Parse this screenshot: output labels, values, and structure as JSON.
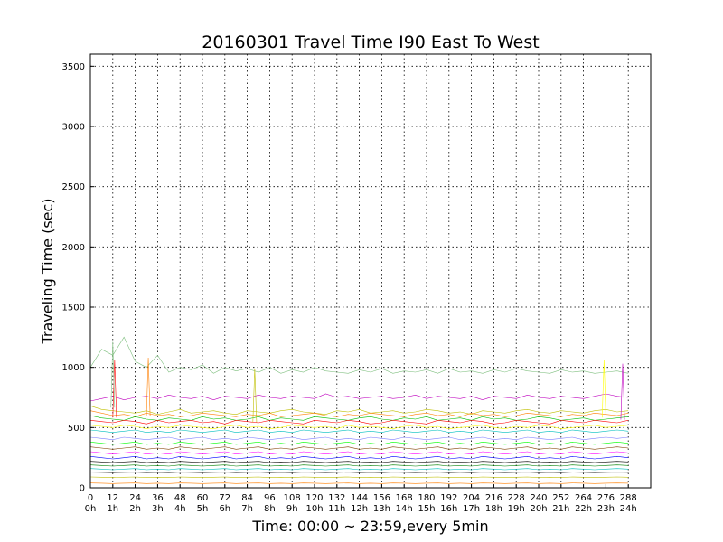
{
  "chart_data": {
    "type": "line",
    "title": "20160301 Travel Time I90 East To West",
    "xlabel": "Time: 00:00 ~ 23:59,every 5min",
    "ylabel": "Traveling Time (sec)",
    "xlim": [
      0,
      300
    ],
    "ylim": [
      0,
      3600
    ],
    "grid": true,
    "x_ticks": [
      {
        "value": 0,
        "label": "0",
        "sublabel": "0h"
      },
      {
        "value": 12,
        "label": "12",
        "sublabel": "1h"
      },
      {
        "value": 24,
        "label": "24",
        "sublabel": "2h"
      },
      {
        "value": 36,
        "label": "36",
        "sublabel": "3h"
      },
      {
        "value": 48,
        "label": "48",
        "sublabel": "4h"
      },
      {
        "value": 60,
        "label": "60",
        "sublabel": "5h"
      },
      {
        "value": 72,
        "label": "72",
        "sublabel": "6h"
      },
      {
        "value": 84,
        "label": "84",
        "sublabel": "7h"
      },
      {
        "value": 96,
        "label": "96",
        "sublabel": "8h"
      },
      {
        "value": 108,
        "label": "108",
        "sublabel": "9h"
      },
      {
        "value": 120,
        "label": "120",
        "sublabel": "10h"
      },
      {
        "value": 132,
        "label": "132",
        "sublabel": "11h"
      },
      {
        "value": 144,
        "label": "144",
        "sublabel": "12h"
      },
      {
        "value": 156,
        "label": "156",
        "sublabel": "13h"
      },
      {
        "value": 168,
        "label": "168",
        "sublabel": "14h"
      },
      {
        "value": 180,
        "label": "180",
        "sublabel": "15h"
      },
      {
        "value": 192,
        "label": "192",
        "sublabel": "16h"
      },
      {
        "value": 204,
        "label": "204",
        "sublabel": "17h"
      },
      {
        "value": 216,
        "label": "216",
        "sublabel": "18h"
      },
      {
        "value": 228,
        "label": "228",
        "sublabel": "19h"
      },
      {
        "value": 240,
        "label": "240",
        "sublabel": "20h"
      },
      {
        "value": 252,
        "label": "252",
        "sublabel": "21h"
      },
      {
        "value": 264,
        "label": "264",
        "sublabel": "22h"
      },
      {
        "value": 276,
        "label": "276",
        "sublabel": "23h"
      },
      {
        "value": 288,
        "label": "288",
        "sublabel": "24h"
      }
    ],
    "y_ticks": [
      0,
      500,
      1000,
      1500,
      2000,
      2500,
      3000,
      3500
    ],
    "series": [
      {
        "color": "#7fbf7f",
        "values": [
          1000,
          1150,
          1100,
          1250,
          1050,
          1000,
          1100,
          960,
          1000,
          980,
          1020,
          950,
          1000,
          970,
          990,
          960,
          1000,
          950,
          980,
          960,
          1000,
          970,
          960,
          950,
          980,
          960,
          990,
          950,
          970,
          960,
          980,
          950,
          990,
          960,
          970,
          950,
          980,
          960,
          990,
          970,
          960,
          950,
          980,
          960,
          970,
          950,
          960,
          970,
          950
        ]
      },
      {
        "color": "#bf00bf",
        "values": [
          720,
          740,
          760,
          730,
          750,
          760,
          740,
          770,
          750,
          740,
          760,
          730,
          760,
          750,
          740,
          770,
          750,
          740,
          760,
          750,
          740,
          780,
          750,
          760,
          740,
          750,
          760,
          740,
          750,
          770,
          740,
          760,
          750,
          740,
          760,
          730,
          760,
          750,
          740,
          770,
          750,
          740,
          760,
          750,
          740,
          760,
          780,
          760,
          750
        ]
      },
      {
        "color": "#bfbf00",
        "values": [
          680,
          650,
          640,
          630,
          620,
          640,
          610,
          630,
          650,
          620,
          630,
          640,
          620,
          610,
          640,
          630,
          620,
          640,
          650,
          630,
          620,
          610,
          640,
          630,
          650,
          620,
          630,
          640,
          620,
          630,
          650,
          640,
          620,
          630,
          610,
          640,
          630,
          620,
          640,
          650,
          630,
          620,
          640,
          630,
          620,
          640,
          650,
          630,
          640
        ]
      },
      {
        "color": "#ff7f00",
        "values": [
          640,
          620,
          600,
          610,
          590,
          620,
          600,
          610,
          590,
          600,
          620,
          610,
          600,
          590,
          610,
          600,
          620,
          590,
          600,
          610,
          620,
          600,
          590,
          610,
          600,
          620,
          610,
          600,
          590,
          610,
          620,
          600,
          610,
          590,
          620,
          600,
          610,
          590,
          600,
          620,
          610,
          600,
          590,
          610,
          600,
          620,
          610,
          600,
          620
        ]
      },
      {
        "color": "#00bf00",
        "values": [
          600,
          580,
          570,
          560,
          590,
          570,
          560,
          580,
          570,
          560,
          590,
          570,
          580,
          560,
          570,
          590,
          560,
          580,
          570,
          560,
          590,
          580,
          570,
          560,
          580,
          590,
          570,
          560,
          580,
          570,
          590,
          560,
          570,
          580,
          560,
          590,
          570,
          580,
          560,
          570,
          590,
          580,
          560,
          570,
          580,
          560,
          570,
          580,
          590
        ]
      },
      {
        "color": "#ff0000",
        "values": [
          560,
          550,
          540,
          560,
          550,
          530,
          560,
          540,
          550,
          560,
          540,
          550,
          530,
          560,
          550,
          540,
          560,
          550,
          540,
          530,
          560,
          550,
          540,
          560,
          550,
          530,
          540,
          560,
          550,
          540,
          530,
          560,
          550,
          540,
          560,
          550,
          530,
          540,
          560,
          550,
          540,
          530,
          560,
          550,
          540,
          560,
          550,
          540,
          560
        ]
      },
      {
        "color": "#ffff00",
        "values": [
          520,
          510,
          500,
          520,
          510,
          490,
          510,
          500,
          520,
          510,
          500,
          490,
          510,
          520,
          500,
          510,
          490,
          500,
          520,
          510,
          500,
          510,
          490,
          520,
          500,
          510,
          500,
          490,
          510,
          520,
          500,
          510,
          490,
          500,
          510,
          520,
          500,
          490,
          510,
          500,
          520,
          510,
          490,
          500,
          510,
          520,
          500,
          510,
          520
        ]
      },
      {
        "color": "#00bfbf",
        "values": [
          480,
          470,
          460,
          470,
          480,
          460,
          470,
          460,
          480,
          470,
          460,
          470,
          480,
          460,
          470,
          480,
          460,
          470,
          460,
          480,
          470,
          460,
          470,
          480,
          460,
          470,
          460,
          480,
          470,
          460,
          470,
          480,
          460,
          470,
          460,
          480,
          470,
          460,
          470,
          480,
          460,
          470,
          460,
          480,
          470,
          460,
          470,
          480,
          470
        ]
      },
      {
        "color": "#7f7fff",
        "values": [
          420,
          410,
          400,
          420,
          410,
          400,
          410,
          420,
          400,
          410,
          420,
          400,
          410,
          400,
          420,
          410,
          400,
          410,
          420,
          400,
          410,
          420,
          400,
          410,
          400,
          420,
          410,
          400,
          420,
          410,
          400,
          410,
          420,
          400,
          410,
          420,
          400,
          410,
          400,
          420,
          410,
          400,
          410,
          420,
          400,
          410,
          420,
          410,
          420
        ]
      },
      {
        "color": "#00ff00",
        "values": [
          380,
          370,
          360,
          370,
          380,
          360,
          370,
          360,
          380,
          370,
          360,
          370,
          380,
          360,
          370,
          380,
          360,
          370,
          360,
          380,
          370,
          360,
          370,
          380,
          360,
          370,
          360,
          380,
          370,
          360,
          370,
          380,
          360,
          370,
          360,
          380,
          370,
          360,
          370,
          380,
          360,
          370,
          360,
          380,
          370,
          360,
          370,
          380,
          370
        ]
      },
      {
        "color": "#7f3f00",
        "values": [
          340,
          330,
          320,
          330,
          340,
          320,
          330,
          320,
          340,
          330,
          320,
          330,
          340,
          320,
          330,
          340,
          320,
          330,
          320,
          340,
          330,
          320,
          330,
          340,
          320,
          330,
          320,
          340,
          330,
          320,
          330,
          340,
          320,
          330,
          320,
          340,
          330,
          320,
          330,
          340,
          320,
          330,
          320,
          340,
          330,
          320,
          330,
          340,
          330
        ]
      },
      {
        "color": "#ff00ff",
        "values": [
          300,
          290,
          280,
          290,
          300,
          280,
          290,
          280,
          300,
          290,
          280,
          290,
          300,
          280,
          290,
          300,
          280,
          290,
          280,
          300,
          290,
          280,
          290,
          300,
          280,
          290,
          280,
          300,
          290,
          280,
          290,
          300,
          280,
          290,
          280,
          300,
          290,
          280,
          290,
          300,
          280,
          290,
          280,
          300,
          290,
          280,
          290,
          300,
          290
        ]
      },
      {
        "color": "#0000ff",
        "values": [
          260,
          250,
          240,
          250,
          260,
          240,
          250,
          240,
          260,
          250,
          240,
          250,
          260,
          240,
          250,
          260,
          240,
          250,
          240,
          260,
          250,
          240,
          250,
          260,
          240,
          250,
          240,
          260,
          250,
          240,
          250,
          260,
          240,
          250,
          240,
          260,
          250,
          240,
          250,
          260,
          240,
          250,
          240,
          260,
          250,
          240,
          250,
          260,
          250
        ]
      },
      {
        "color": "#000000",
        "values": [
          220,
          215,
          210,
          215,
          220,
          210,
          215,
          210,
          220,
          215,
          210,
          215,
          220,
          210,
          215,
          220,
          210,
          215,
          210,
          220,
          215,
          210,
          215,
          220,
          210,
          215,
          210,
          220,
          215,
          210,
          215,
          220,
          210,
          215,
          210,
          220,
          215,
          210,
          215,
          220,
          210,
          215,
          210,
          220,
          215,
          210,
          215,
          220,
          215
        ]
      },
      {
        "color": "#007f00",
        "values": [
          190,
          185,
          180,
          185,
          190,
          180,
          185,
          180,
          190,
          185,
          180,
          185,
          190,
          180,
          185,
          190,
          180,
          185,
          180,
          190,
          185,
          180,
          185,
          190,
          180,
          185,
          180,
          190,
          185,
          180,
          185,
          190,
          180,
          185,
          180,
          190,
          185,
          180,
          185,
          190,
          180,
          185,
          180,
          190,
          185,
          180,
          185,
          190,
          185
        ]
      },
      {
        "color": "#00bfbf",
        "values": [
          160,
          155,
          150,
          155,
          160,
          150,
          155,
          150,
          160,
          155,
          150,
          155,
          160,
          150,
          155,
          160,
          150,
          155,
          150,
          160,
          155,
          150,
          155,
          160,
          150,
          155,
          150,
          160,
          155,
          150,
          155,
          160,
          150,
          155,
          150,
          160,
          155,
          150,
          155,
          160,
          150,
          155,
          150,
          160,
          155,
          150,
          155,
          160,
          155
        ]
      },
      {
        "color": "#3f3f3f",
        "values": [
          130,
          128,
          125,
          128,
          130,
          125,
          128,
          125,
          130,
          128,
          125,
          128,
          130,
          125,
          128,
          130,
          125,
          128,
          125,
          130,
          128,
          125,
          128,
          130,
          125,
          128,
          125,
          130,
          128,
          125,
          128,
          130,
          125,
          128,
          125,
          130,
          128,
          125,
          128,
          130,
          125,
          128,
          125,
          130,
          128,
          125,
          128,
          130,
          128
        ]
      },
      {
        "color": "#bfbf00",
        "values": [
          90,
          88,
          85,
          88,
          90,
          85,
          88,
          85,
          90,
          88,
          85,
          88,
          90,
          85,
          88,
          90,
          85,
          88,
          85,
          90,
          88,
          85,
          88,
          90,
          85,
          88,
          85,
          90,
          88,
          85,
          88,
          90,
          85,
          88,
          85,
          90,
          88,
          85,
          88,
          90,
          85,
          88,
          85,
          90,
          88,
          85,
          88,
          90,
          88
        ]
      },
      {
        "color": "#ff7f00",
        "values": [
          40,
          38,
          35,
          38,
          40,
          35,
          38,
          35,
          40,
          38,
          35,
          38,
          40,
          35,
          38,
          40,
          35,
          38,
          35,
          40,
          38,
          35,
          38,
          40,
          35,
          38,
          35,
          40,
          38,
          35,
          38,
          40,
          35,
          38,
          35,
          40,
          38,
          35,
          38,
          40,
          35,
          38,
          35,
          40,
          38,
          35,
          38,
          40,
          38
        ]
      }
    ],
    "spikes": [
      {
        "color": "#ff0000",
        "x": 13,
        "y": 1060
      },
      {
        "color": "#ff7f00",
        "x": 31,
        "y": 1080
      },
      {
        "color": "#ffff00",
        "x": 275,
        "y": 1060
      },
      {
        "color": "#bf00bf",
        "x": 285,
        "y": 1030
      },
      {
        "color": "#7fbf7f",
        "x": 12,
        "y": 1210
      },
      {
        "color": "#bfbf00",
        "x": 88,
        "y": 990
      }
    ]
  }
}
